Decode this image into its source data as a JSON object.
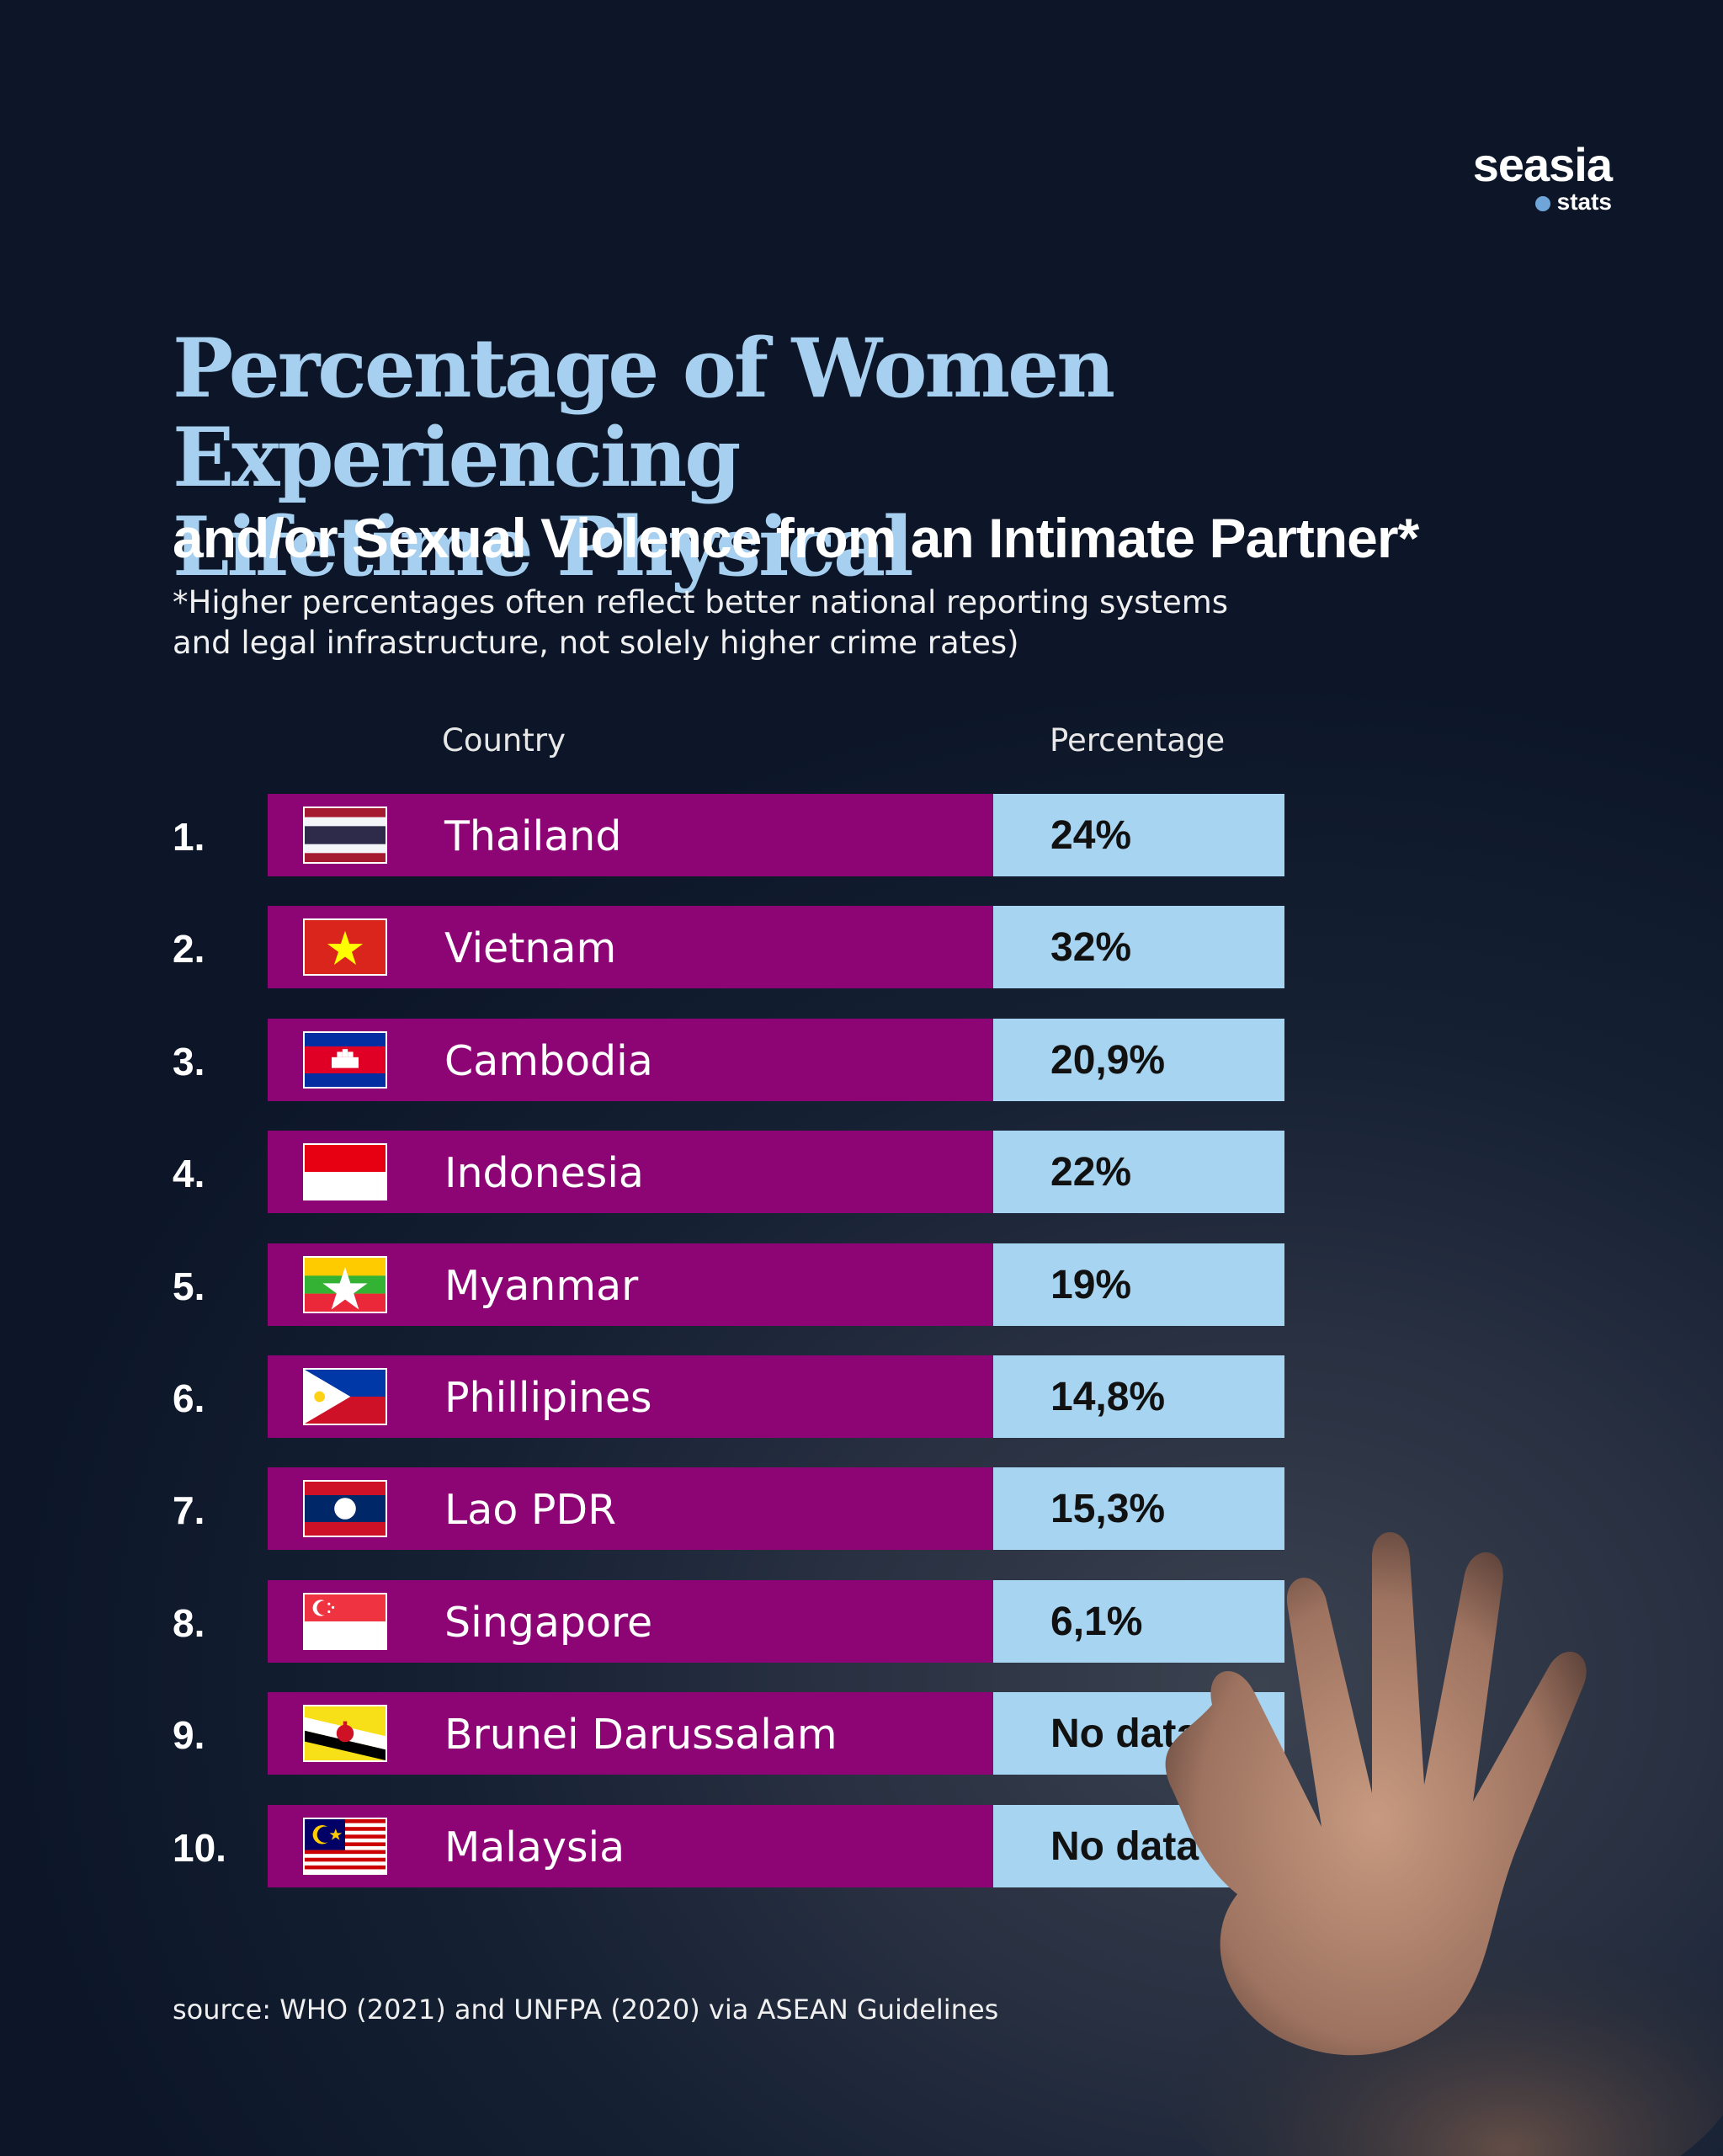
{
  "logo": {
    "main": "seasia",
    "sub": "stats"
  },
  "title_line1": "Percentage of Women Experiencing",
  "title_line2": "Lifetime Physical",
  "subtitle": "and/or Sexual Violence from an Intimate Partner*",
  "note_line1": "*Higher percentages often reflect better national reporting systems",
  "note_line2": "and legal infrastructure, not solely higher crime rates)",
  "source": "source: WHO (2021) and UNFPA (2020) via ASEAN Guidelines",
  "colors": {
    "bar": "#8d0575",
    "value_box": "#a7d4f0",
    "title": "#a7d0f0"
  },
  "chart_data": {
    "type": "table",
    "columns": [
      "Country",
      "Percentage"
    ],
    "rows": [
      {
        "rank": "1.",
        "country": "Thailand",
        "value_text": "24%",
        "value": 24,
        "flag_icon": "thailand-flag-icon"
      },
      {
        "rank": "2.",
        "country": "Vietnam",
        "value_text": "32%",
        "value": 32,
        "flag_icon": "vietnam-flag-icon"
      },
      {
        "rank": "3.",
        "country": "Cambodia",
        "value_text": "20,9%",
        "value": 20.9,
        "flag_icon": "cambodia-flag-icon"
      },
      {
        "rank": "4.",
        "country": "Indonesia",
        "value_text": "22%",
        "value": 22,
        "flag_icon": "indonesia-flag-icon"
      },
      {
        "rank": "5.",
        "country": "Myanmar",
        "value_text": "19%",
        "value": 19,
        "flag_icon": "myanmar-flag-icon"
      },
      {
        "rank": "6.",
        "country": "Phillipines",
        "value_text": "14,8%",
        "value": 14.8,
        "flag_icon": "philippines-flag-icon"
      },
      {
        "rank": "7.",
        "country": "Lao PDR",
        "value_text": "15,3%",
        "value": 15.3,
        "flag_icon": "laos-flag-icon"
      },
      {
        "rank": "8.",
        "country": "Singapore",
        "value_text": "6,1%",
        "value": 6.1,
        "flag_icon": "singapore-flag-icon"
      },
      {
        "rank": "9.",
        "country": "Brunei Darussalam",
        "value_text": "No data",
        "value": null,
        "flag_icon": "brunei-flag-icon"
      },
      {
        "rank": "10.",
        "country": "Malaysia",
        "value_text": "No data",
        "value": null,
        "flag_icon": "malaysia-flag-icon"
      }
    ]
  }
}
